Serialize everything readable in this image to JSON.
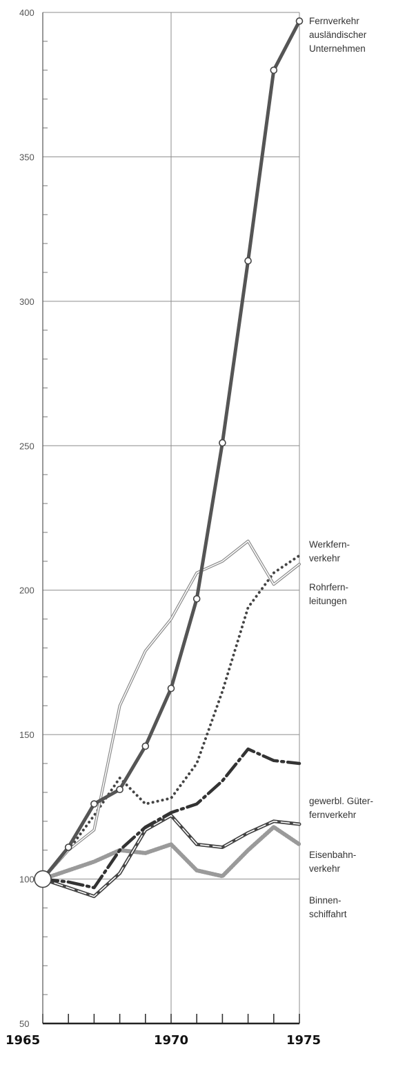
{
  "chart_data": {
    "type": "line",
    "title": "",
    "xlabel": "",
    "ylabel": "",
    "xlim": [
      1965,
      1975
    ],
    "ylim": [
      50,
      400
    ],
    "y_ticks": [
      50,
      100,
      150,
      200,
      250,
      300,
      350,
      400
    ],
    "x_ticks": [
      1965,
      1970,
      1975
    ],
    "grid": true,
    "series": [
      {
        "name_lines": [
          "Fernverkehr",
          "ausländischer",
          "Unternehmen"
        ],
        "style": "thick-with-circles",
        "color": "#555555",
        "x": [
          1965,
          1966,
          1967,
          1968,
          1969,
          1970,
          1971,
          1972,
          1973,
          1974,
          1975
        ],
        "y": [
          100,
          111,
          126,
          131,
          146,
          166,
          197,
          251,
          314,
          380,
          397
        ]
      },
      {
        "name_lines": [
          "Werkfern-",
          "verkehr"
        ],
        "style": "double-line",
        "color": "#8a8a8a",
        "x": [
          1965,
          1966,
          1967,
          1968,
          1969,
          1970,
          1971,
          1972,
          1973,
          1974,
          1975
        ],
        "y": [
          100,
          110,
          117,
          160,
          179,
          190,
          206,
          210,
          217,
          202,
          209
        ]
      },
      {
        "name_lines": [
          "Rohrfern-",
          "leitungen"
        ],
        "style": "dotted",
        "color": "#444444",
        "x": [
          1965,
          1966,
          1967,
          1968,
          1969,
          1970,
          1971,
          1972,
          1973,
          1974,
          1975
        ],
        "y": [
          100,
          110,
          122,
          135,
          126,
          128,
          140,
          165,
          194,
          206,
          212
        ]
      },
      {
        "name_lines": [
          "gewerbl. Güter-",
          "fernverkehr"
        ],
        "style": "long-dash",
        "color": "#333333",
        "x": [
          1965,
          1966,
          1967,
          1968,
          1969,
          1970,
          1971,
          1972,
          1973,
          1974,
          1975
        ],
        "y": [
          100,
          99,
          97,
          110,
          118,
          123,
          126,
          134,
          145,
          141,
          140
        ]
      },
      {
        "name_lines": [
          "Eisenbahn-",
          "verkehr"
        ],
        "style": "dash-white-core",
        "color": "#444444",
        "x": [
          1965,
          1966,
          1967,
          1968,
          1969,
          1970,
          1971,
          1972,
          1973,
          1974,
          1975
        ],
        "y": [
          100,
          97,
          94,
          102,
          117,
          122,
          112,
          111,
          116,
          120,
          119
        ]
      },
      {
        "name_lines": [
          "Binnen-",
          "schiffahrt"
        ],
        "style": "grey-dotted-band",
        "color": "#9a9a9a",
        "x": [
          1965,
          1966,
          1967,
          1968,
          1969,
          1970,
          1971,
          1972,
          1973,
          1974,
          1975
        ],
        "y": [
          100,
          103,
          106,
          110,
          109,
          112,
          103,
          101,
          110,
          118,
          112
        ]
      }
    ]
  }
}
